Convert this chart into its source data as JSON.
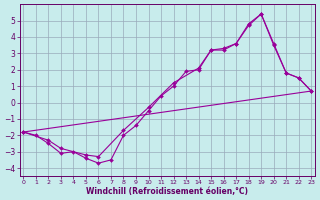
{
  "xlabel": "Windchill (Refroidissement éolien,°C)",
  "bg_color": "#c8ecec",
  "line_color": "#990099",
  "grid_color": "#99aabb",
  "line1_x": [
    0,
    1,
    2,
    3,
    4,
    5,
    6,
    7,
    8,
    9,
    10,
    11,
    12,
    13,
    14,
    15,
    16,
    17,
    18,
    19,
    20,
    21,
    22,
    23
  ],
  "line1_y": [
    -1.8,
    -2.0,
    -2.5,
    -3.1,
    -3.0,
    -3.4,
    -3.7,
    -3.5,
    -2.0,
    -1.4,
    -0.5,
    0.4,
    1.0,
    1.9,
    2.0,
    3.2,
    3.2,
    3.6,
    4.8,
    5.4,
    3.6,
    1.8,
    1.5,
    0.7
  ],
  "line2_x": [
    0,
    2,
    3,
    5,
    6,
    8,
    10,
    12,
    14,
    15,
    16,
    17,
    18,
    19,
    20,
    21,
    22,
    23
  ],
  "line2_y": [
    -1.8,
    -2.3,
    -2.8,
    -3.2,
    -3.3,
    -1.7,
    -0.3,
    1.2,
    2.1,
    3.2,
    3.3,
    3.6,
    4.7,
    5.4,
    3.5,
    1.8,
    1.5,
    0.7
  ],
  "line3_x": [
    0,
    23
  ],
  "line3_y": [
    -1.8,
    0.7
  ],
  "ylim": [
    -4.5,
    6.0
  ],
  "xlim": [
    -0.3,
    23.3
  ],
  "yticks": [
    -4,
    -3,
    -2,
    -1,
    0,
    1,
    2,
    3,
    4,
    5
  ],
  "xticks": [
    0,
    1,
    2,
    3,
    4,
    5,
    6,
    7,
    8,
    9,
    10,
    11,
    12,
    13,
    14,
    15,
    16,
    17,
    18,
    19,
    20,
    21,
    22,
    23
  ]
}
